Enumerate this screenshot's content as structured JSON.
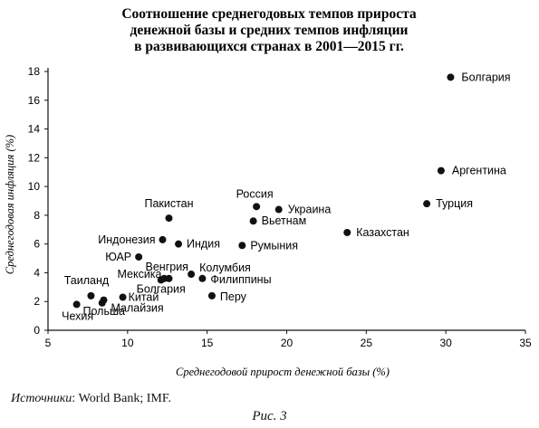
{
  "chart_data": {
    "type": "scatter",
    "title": [
      "Соотношение среднегодовых темпов прироста",
      "денежной базы и средних темпов инфляции",
      "в развивающихся странах в 2001—2015 гг."
    ],
    "xlabel": "Среднегодовой прирост денежной базы (%)",
    "ylabel": "Среднегодовая инфляция (%)",
    "xlim": [
      5,
      35
    ],
    "ylim": [
      0,
      18
    ],
    "xticks": [
      5,
      10,
      15,
      20,
      25,
      30,
      35
    ],
    "yticks": [
      0,
      2,
      4,
      6,
      8,
      10,
      12,
      14,
      16,
      18
    ],
    "grid": false,
    "points": [
      {
        "label": "Болгария",
        "x": 30.3,
        "y": 17.6
      },
      {
        "label": "Аргентина",
        "x": 29.7,
        "y": 11.1
      },
      {
        "label": "Турция",
        "x": 28.8,
        "y": 8.8
      },
      {
        "label": "Казахстан",
        "x": 23.8,
        "y": 6.8
      },
      {
        "label": "Россия",
        "x": 18.1,
        "y": 8.6
      },
      {
        "label": "Украина",
        "x": 19.5,
        "y": 8.4
      },
      {
        "label": "Вьетнам",
        "x": 17.9,
        "y": 7.6
      },
      {
        "label": "Румыния",
        "x": 17.2,
        "y": 5.9
      },
      {
        "label": "Пакистан",
        "x": 12.6,
        "y": 7.8
      },
      {
        "label": "Индонезия",
        "x": 12.2,
        "y": 6.3
      },
      {
        "label": "Индия",
        "x": 13.2,
        "y": 6.0
      },
      {
        "label": "ЮАР",
        "x": 10.7,
        "y": 5.1
      },
      {
        "label": "Колумбия",
        "x": 14.0,
        "y": 3.9
      },
      {
        "label": "Филиппины",
        "x": 14.7,
        "y": 3.6
      },
      {
        "label": "Венгрия",
        "x": 12.3,
        "y": 3.6
      },
      {
        "label": "Мексика",
        "x": 12.6,
        "y": 3.6
      },
      {
        "label": "Болгария",
        "x": 12.1,
        "y": 3.5
      },
      {
        "label": "Перу",
        "x": 15.3,
        "y": 2.4
      },
      {
        "label": "Таиланд",
        "x": 7.7,
        "y": 2.4
      },
      {
        "label": "Китай",
        "x": 9.7,
        "y": 2.3
      },
      {
        "label": "Малайзия",
        "x": 8.5,
        "y": 2.1
      },
      {
        "label": "Польша",
        "x": 8.4,
        "y": 1.9
      },
      {
        "label": "Чехия",
        "x": 6.8,
        "y": 1.8
      }
    ]
  },
  "source": {
    "key": "Источники",
    "text": ": World Bank; IMF."
  },
  "caption": "Рис. 3"
}
